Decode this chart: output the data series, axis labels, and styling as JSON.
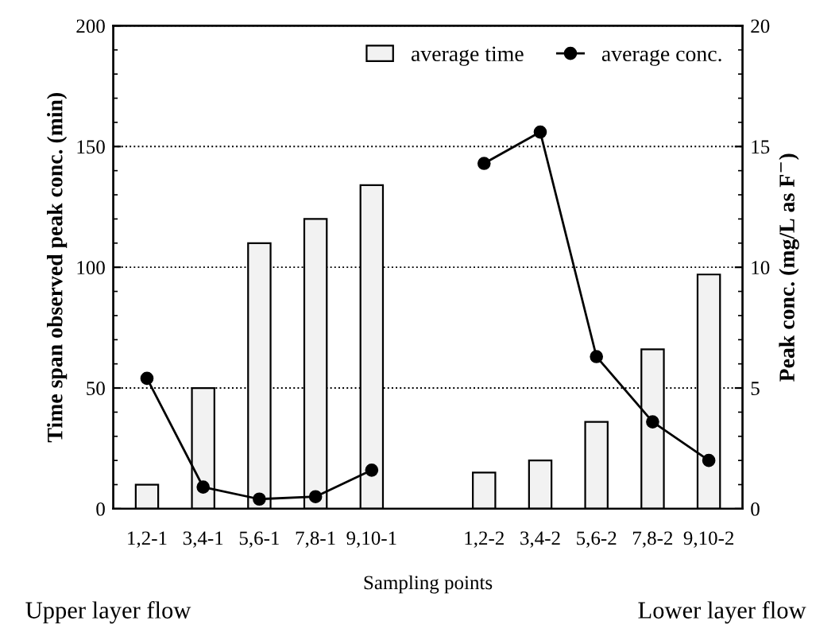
{
  "chart_data": {
    "type": "bar",
    "xlabel": "Sampling points",
    "ylabel": "Time span observed peak conc. (min)",
    "y2label": "Peak conc. (mg/L as F$^{−}$)",
    "categories": [
      "1,2-1",
      "3,4-1",
      "5,6-1",
      "7,8-1",
      "9,10-1",
      null,
      "1,2-2",
      "3,4-2",
      "5,6-2",
      "7,8-2",
      "9,10-2"
    ],
    "series": [
      {
        "name": "average time",
        "color": "#f2f2f2",
        "values": [
          10,
          50,
          110,
          120,
          134,
          null,
          15,
          20,
          36,
          66,
          97
        ]
      },
      {
        "name": "average conc.",
        "type": "line",
        "axis": "y2",
        "color": "#000000",
        "marker": "circle",
        "values": [
          5.4,
          0.9,
          0.4,
          0.5,
          1.6,
          null,
          14.3,
          15.6,
          6.3,
          3.6,
          2.0
        ]
      }
    ],
    "ylim": [
      0,
      200
    ],
    "yticks": [
      0,
      50,
      100,
      150,
      200
    ],
    "y2lim": [
      0,
      20
    ],
    "y2ticks": [
      0,
      5,
      10,
      15,
      20
    ],
    "grid": "y",
    "legend": "top right",
    "annotations": [
      "Upper layer flow",
      "Lower layer flow"
    ]
  }
}
